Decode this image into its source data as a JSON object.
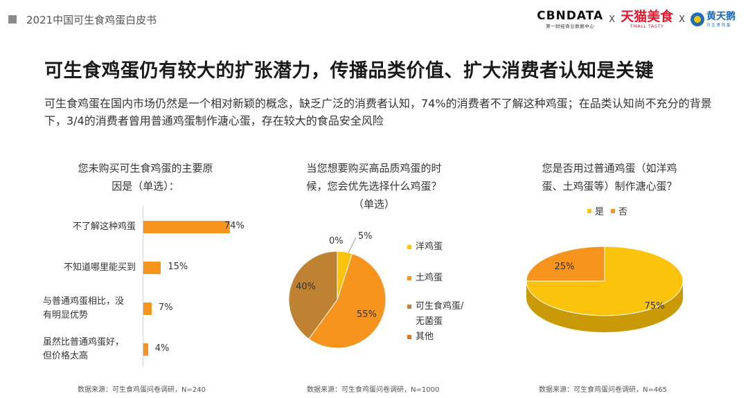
{
  "header": {
    "report_title": "2021中国可生食鸡蛋白皮书"
  },
  "logos": {
    "cbndata": "CBNDATA",
    "cbndata_sub": "第一财经商业数据中心",
    "separator": "X",
    "tmall": "天猫美食",
    "tmall_sub": "TMALL TASTY",
    "huangtiane": "黄天鹅",
    "huangtiane_sub": "可 生 食 鸡 蛋"
  },
  "page": {
    "title": "可生食鸡蛋仍有较大的扩张潜力，传播品类价值、扩大消费者认知是关键",
    "subtitle": "可生食鸡蛋在国内市场仍然是一个相对新颖的概念，缺乏广泛的消费者认知，74%的消费者不了解这种鸡蛋；在品类认知尚不充分的背景下，3/4的消费者曾用普通鸡蛋制作溏心蛋，存在较大的食品安全风险"
  },
  "colors": {
    "orange": "#f7941d",
    "yellow": "#fcc30c",
    "brown": "#bf8232",
    "deep_orange": "#e8731f",
    "axis": "#cfcfcf"
  },
  "chart_data": [
    {
      "type": "bar",
      "title_line1": "您未购买可生食鸡蛋的主要原",
      "title_line2": "因是（单选）：",
      "categories": [
        "不了解这种鸡蛋",
        "不知道哪里能买到",
        "与普通鸡蛋相比，没有明显优势",
        "虽然比普通鸡蛋好，但价格太高"
      ],
      "category_lines": [
        [
          "不了解这种鸡蛋"
        ],
        [
          "不知道哪里能买到"
        ],
        [
          "与普通鸡蛋相比，没",
          "有明显优势"
        ],
        [
          "虽然比普通鸡蛋好，",
          "但价格太高"
        ]
      ],
      "values": [
        74,
        15,
        7,
        4
      ],
      "value_labels": [
        "74%",
        "15%",
        "7%",
        "4%"
      ],
      "orientation": "horizontal",
      "xlim": [
        0,
        100
      ],
      "source": "数据来源：可生食鸡蛋问卷调研，N=240"
    },
    {
      "type": "pie",
      "title_line1": "当您想要购买高品质鸡蛋的时",
      "title_line2": "候，您会优先选择什么鸡蛋？",
      "title_line3": "（单选）",
      "slices": [
        {
          "label": "洋鸡蛋",
          "value": 5,
          "value_label": "5%",
          "color": "#fcc30c"
        },
        {
          "label": "土鸡蛋",
          "value": 55,
          "value_label": "55%",
          "color": "#f7941d"
        },
        {
          "label": "可生食鸡蛋/无菌蛋",
          "label_line1": "可生食鸡蛋/",
          "label_line2": "无菌蛋",
          "value": 40,
          "value_label": "40%",
          "color": "#bf8232"
        },
        {
          "label": "其他",
          "value": 0,
          "value_label": "0%",
          "color": "#e8731f"
        }
      ],
      "source": "数据来源：可生食鸡蛋问卷调研，N=1000"
    },
    {
      "type": "pie",
      "title_line1": "您是否用过普通鸡蛋（如洋鸡",
      "title_line2": "蛋、土鸡蛋等）制作溏心蛋？",
      "legend_position": "top",
      "slices": [
        {
          "label": "是",
          "value": 75,
          "value_label": "75%",
          "color": "#fcc30c"
        },
        {
          "label": "否",
          "value": 25,
          "value_label": "25%",
          "color": "#f7941d"
        }
      ],
      "source": "数据来源：可生食鸡蛋问卷调研，N=465"
    }
  ]
}
